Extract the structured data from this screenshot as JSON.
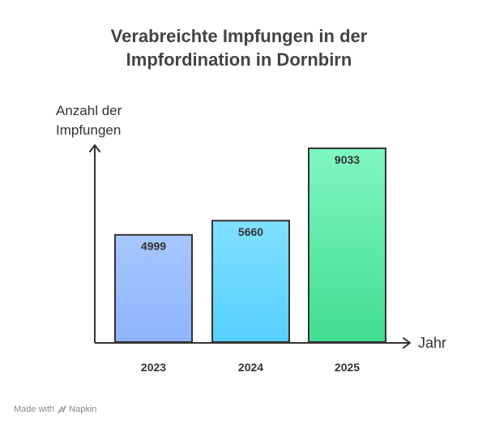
{
  "chart_data": {
    "type": "bar",
    "title_lines": [
      "Verabreichte Impfungen in der",
      "Impfordination in Dornbirn"
    ],
    "ylabel_lines": [
      "Anzahl der",
      "Impfungen"
    ],
    "xlabel": "Jahr",
    "categories": [
      "2023",
      "2024",
      "2025"
    ],
    "values": [
      4999,
      5660,
      9033
    ],
    "colors": [
      {
        "top": "#a6c6ff",
        "bottom": "#8fb4fb"
      },
      {
        "top": "#80e0ff",
        "bottom": "#55cffc"
      },
      {
        "top": "#80f7c0",
        "bottom": "#41dc8f"
      }
    ],
    "bar_stroke": "#333333",
    "grid": false
  },
  "footer": {
    "made_with": "Made with",
    "brand": "Napkin"
  }
}
